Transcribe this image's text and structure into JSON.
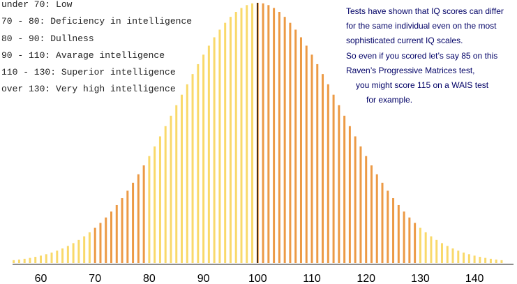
{
  "legend": [
    "under 70: Low",
    "70 - 80: Deficiency in intelligence",
    "80 - 90: Dullness",
    "90 - 110: Avarage intelligence",
    "110 - 130: Superior intelligence",
    "over 130: Very high intelligence"
  ],
  "note": [
    "Tests have shown that IQ scores can differ",
    "for the same individual even on the most",
    "sophisticated current IQ scales.",
    "So even if you scored let’s say 85 on this",
    "Raven’s Progressive Matrices test,",
    "you might score 115 on a WAIS test",
    "for example."
  ],
  "colors": {
    "bar_light": "#f9d96a",
    "bar_dark": "#ec9a45",
    "mean_line": "#000000",
    "axis": "#000000",
    "note_text": "#000066"
  },
  "chart_data": {
    "type": "bar",
    "xlabel": "",
    "ylabel": "",
    "xlim": [
      53,
      146
    ],
    "ylim": [
      0,
      1
    ],
    "x_ticks": [
      60,
      70,
      80,
      90,
      100,
      110,
      120,
      130,
      140
    ],
    "bar_x_range": [
      55,
      145
    ],
    "bar_x_step": 1,
    "distribution": {
      "kind": "normal",
      "mean": 100,
      "sd": 15
    },
    "values_note": "bar heights relative to the peak at 100",
    "mean_marker": 100,
    "color_bands": [
      {
        "from": 55,
        "to": 70,
        "color": "bar_light"
      },
      {
        "from": 70,
        "to": 80,
        "color": "bar_dark"
      },
      {
        "from": 80,
        "to": 90,
        "color": "bar_light"
      },
      {
        "from": 90,
        "to": 100,
        "color": "bar_light"
      },
      {
        "from": 100,
        "to": 110,
        "color": "bar_dark"
      },
      {
        "from": 110,
        "to": 130,
        "color": "bar_dark"
      },
      {
        "from": 130,
        "to": 145,
        "color": "bar_light"
      }
    ],
    "grid": false,
    "legend_position": "top-left"
  }
}
